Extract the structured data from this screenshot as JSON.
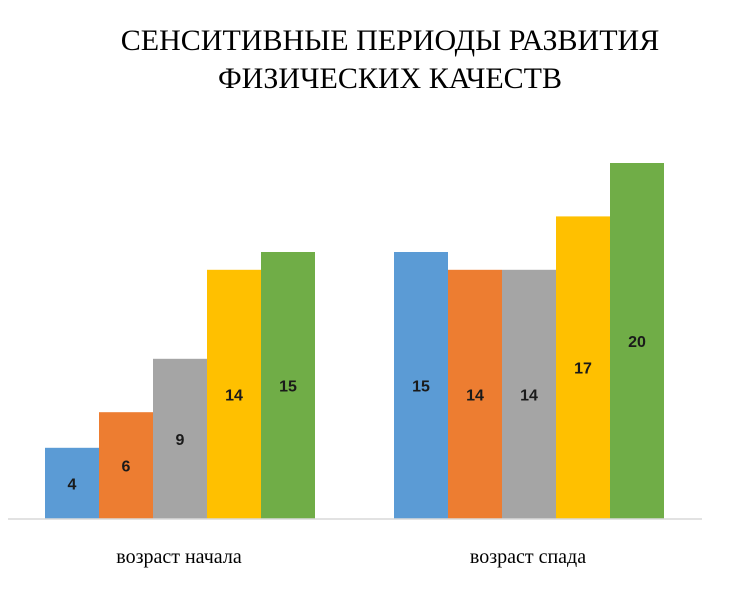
{
  "chart_data": {
    "type": "bar",
    "title": "СЕНСИТИВНЫЕ ПЕРИОДЫ РАЗВИТИЯ ФИЗИЧЕСКИХ КАЧЕСТВ",
    "title_lines": [
      "СЕНСИТИВНЫЕ ПЕРИОДЫ РАЗВИТИЯ",
      "ФИЗИЧЕСКИХ КАЧЕСТВ"
    ],
    "xlabel": "",
    "ylabel": "",
    "ylim": [
      0,
      20
    ],
    "grid": false,
    "legend": "none",
    "categories": [
      "возраст начала",
      "возраст спада"
    ],
    "series": [
      {
        "color": "#5b9bd5",
        "values": [
          4,
          15
        ]
      },
      {
        "color": "#ed7d31",
        "values": [
          6,
          14
        ]
      },
      {
        "color": "#a5a5a5",
        "values": [
          9,
          14
        ]
      },
      {
        "color": "#ffc000",
        "values": [
          14,
          17
        ]
      },
      {
        "color": "#70ad47",
        "values": [
          15,
          20
        ]
      }
    ]
  }
}
